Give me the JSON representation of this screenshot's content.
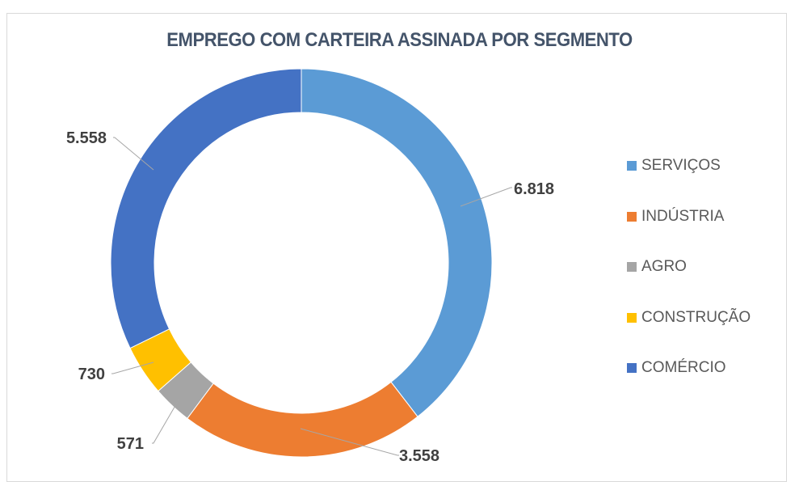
{
  "chart_data": {
    "type": "pie",
    "donut": true,
    "title": "EMPREGO COM CARTEIRA ASSINADA POR SEGMENTO",
    "start_angle": "top, clockwise",
    "legend_position": "right",
    "categories": [
      "SERVIÇOS",
      "INDÚSTRIA",
      "AGRO",
      "CONSTRUÇÃO",
      "COMÉRCIO"
    ],
    "values": [
      6818,
      3558,
      571,
      730,
      5558
    ],
    "data_labels": [
      "6.818",
      "3.558",
      "571",
      "730",
      "5.558"
    ],
    "colors": [
      "#5b9bd5",
      "#ed7d31",
      "#a5a5a5",
      "#ffc000",
      "#4472c4"
    ]
  }
}
